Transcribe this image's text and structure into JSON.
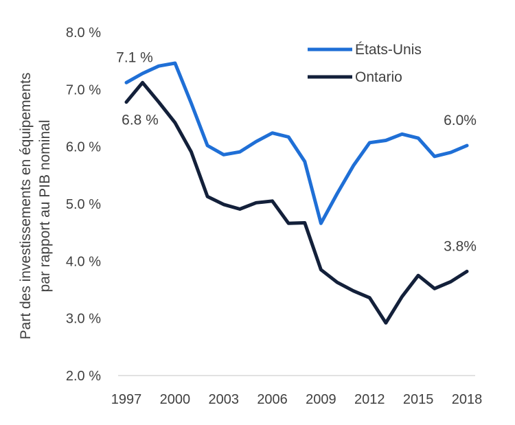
{
  "chart_data": {
    "type": "line",
    "title": "",
    "xlabel": "",
    "ylabel_lines": [
      "Part des investissements en équipements",
      "par rapport au PIB nominal"
    ],
    "ylim": [
      2.0,
      8.0
    ],
    "y_ticks": [
      "2.0 %",
      "3.0 %",
      "4.0 %",
      "5.0 %",
      "6.0 %",
      "7.0 %",
      "8.0 %"
    ],
    "x_ticks": [
      "1997",
      "2000",
      "2003",
      "2006",
      "2009",
      "2012",
      "2015",
      "2018"
    ],
    "x": [
      1997,
      1998,
      1999,
      2000,
      2001,
      2002,
      2003,
      2004,
      2005,
      2006,
      2007,
      2008,
      2009,
      2010,
      2011,
      2012,
      2013,
      2014,
      2015,
      2016,
      2017,
      2018
    ],
    "legend_position": "top-right",
    "grid": false,
    "series": [
      {
        "name": "États-Unis",
        "color": "#1f6fd6",
        "values": [
          7.12,
          7.28,
          7.41,
          7.46,
          6.76,
          6.02,
          5.86,
          5.91,
          6.09,
          6.24,
          6.17,
          5.74,
          4.66,
          5.18,
          5.67,
          6.07,
          6.11,
          6.22,
          6.15,
          5.83,
          5.9,
          6.02
        ]
      },
      {
        "name": "Ontario",
        "color": "#13203a",
        "values": [
          6.78,
          7.12,
          6.78,
          6.42,
          5.91,
          5.13,
          4.99,
          4.91,
          5.02,
          5.05,
          4.66,
          4.67,
          3.85,
          3.63,
          3.48,
          3.36,
          2.92,
          3.38,
          3.75,
          3.52,
          3.64,
          3.82
        ]
      }
    ],
    "annotations": [
      {
        "text": "7.1 %",
        "series": 0,
        "x": 1997
      },
      {
        "text": "6.8 %",
        "series": 1,
        "x": 1997
      },
      {
        "text": "6.0%",
        "series": 0,
        "x": 2018
      },
      {
        "text": "3.8%",
        "series": 1,
        "x": 2018
      }
    ]
  }
}
